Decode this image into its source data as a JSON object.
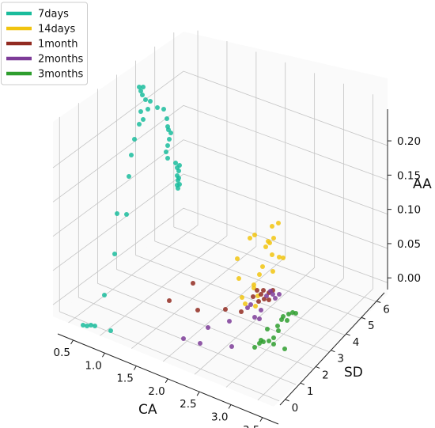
{
  "chart_data": {
    "type": "scatter3d",
    "axes": {
      "x": {
        "label": "CA",
        "ticks": [
          "0.5",
          "1.0",
          "1.5",
          "2.0",
          "2.5",
          "3.0",
          "3.5"
        ]
      },
      "y": {
        "label": "SD",
        "ticks": [
          "0",
          "1",
          "2",
          "3",
          "4",
          "5",
          "6"
        ]
      },
      "z": {
        "label": "AA",
        "ticks": [
          "0.00",
          "0.05",
          "0.10",
          "0.15",
          "0.20"
        ]
      }
    },
    "legend_position": "top-left",
    "grid": true,
    "series": [
      {
        "name": "7days",
        "color": "#1abc9c"
      },
      {
        "name": "14days",
        "color": "#f1c40f"
      },
      {
        "name": "1month",
        "color": "#922b21"
      },
      {
        "name": "2months",
        "color": "#7d3c98"
      },
      {
        "name": "3months",
        "color": "#2e9e2e"
      }
    ]
  }
}
